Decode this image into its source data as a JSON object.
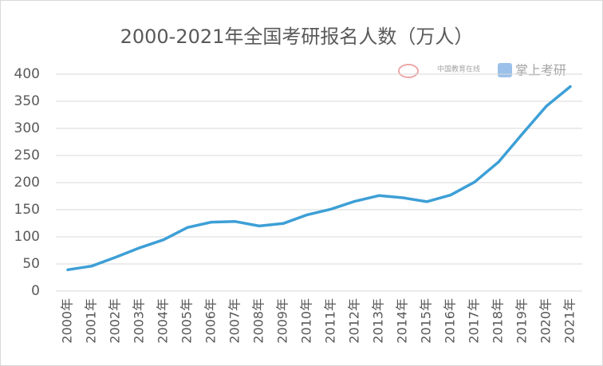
{
  "chart_data": {
    "type": "line",
    "title": "2000-2021年全国考研报名人数（万人）",
    "categories": [
      "2000年",
      "2001年",
      "2002年",
      "2003年",
      "2004年",
      "2005年",
      "2006年",
      "2007年",
      "2008年",
      "2009年",
      "2010年",
      "2011年",
      "2012年",
      "2013年",
      "2014年",
      "2015年",
      "2016年",
      "2017年",
      "2018年",
      "2019年",
      "2020年",
      "2021年"
    ],
    "series": [
      {
        "name": "报名人数",
        "color": "#3d9fd6",
        "values": [
          39.2,
          46,
          62.4,
          79.7,
          94.5,
          117.2,
          127.1,
          128.2,
          120,
          124.6,
          140.6,
          151.1,
          165.6,
          176,
          172,
          164.9,
          177,
          201,
          238,
          290,
          341,
          377
        ]
      }
    ],
    "ylim": [
      0,
      400
    ],
    "yticks": [
      0,
      50,
      100,
      150,
      200,
      250,
      300,
      350,
      400
    ],
    "grid": true,
    "watermarks": [
      "中国教育在线",
      "掌上考研"
    ]
  }
}
